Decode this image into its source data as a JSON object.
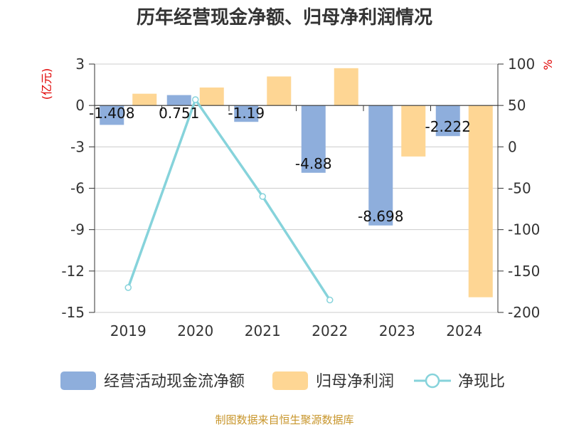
{
  "chart_data": {
    "type": "bar",
    "title": "历年经营现金净额、归母净利润情况",
    "categories": [
      "2019",
      "2020",
      "2021",
      "2022",
      "2023",
      "2024"
    ],
    "left_axis": {
      "unit": "(亿元)",
      "ticks": [
        3,
        0,
        -3,
        -6,
        -9,
        -12,
        -15
      ],
      "range": [
        -15,
        3
      ]
    },
    "right_axis": {
      "unit": "%",
      "ticks": [
        100,
        50,
        0,
        -50,
        -100,
        -150,
        -200
      ],
      "range": [
        -200,
        100
      ]
    },
    "series": [
      {
        "name": "经营活动现金流净额",
        "kind": "bar",
        "axis": "left",
        "color": "#8eaedc",
        "values": [
          -1.408,
          0.751,
          -1.19,
          -4.88,
          -8.698,
          -2.222
        ],
        "labels": [
          "-1.408",
          "0.751",
          "-1.19",
          "-4.88",
          "-8.698",
          "-2.222"
        ]
      },
      {
        "name": "归母净利润",
        "kind": "bar",
        "axis": "left",
        "color": "#fed694",
        "values": [
          0.85,
          1.3,
          2.1,
          2.7,
          -3.7,
          -13.9
        ]
      },
      {
        "name": "净现比",
        "kind": "line",
        "axis": "right",
        "color": "#86d3db",
        "values": [
          -170,
          57,
          -60,
          -185,
          null,
          null
        ]
      }
    ],
    "source": "制图数据来自恒生聚源数据库"
  }
}
